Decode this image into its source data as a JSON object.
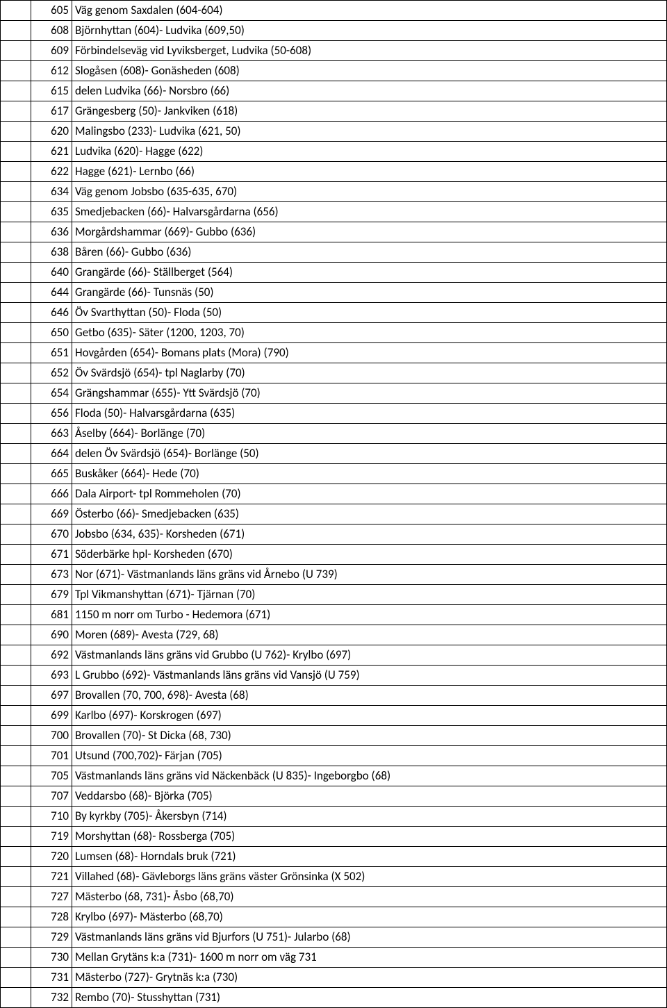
{
  "table": {
    "rows": [
      {
        "num": "605",
        "desc": "Väg genom Saxdalen (604-604)"
      },
      {
        "num": "608",
        "desc": "Björnhyttan (604)- Ludvika (609,50)"
      },
      {
        "num": "609",
        "desc": "Förbindelseväg vid Lyviksberget, Ludvika (50-608)"
      },
      {
        "num": "612",
        "desc": "Slogåsen (608)- Gonäsheden (608)"
      },
      {
        "num": "615",
        "desc": "delen Ludvika (66)- Norsbro (66)"
      },
      {
        "num": "617",
        "desc": "Grängesberg (50)- Jankviken (618)"
      },
      {
        "num": "620",
        "desc": "Malingsbo (233)- Ludvika (621, 50)"
      },
      {
        "num": "621",
        "desc": "Ludvika (620)- Hagge (622)"
      },
      {
        "num": "622",
        "desc": "Hagge (621)- Lernbo (66)"
      },
      {
        "num": "634",
        "desc": "Väg genom Jobsbo (635-635, 670)"
      },
      {
        "num": "635",
        "desc": "Smedjebacken (66)- Halvarsgårdarna (656)"
      },
      {
        "num": "636",
        "desc": "Morgårdshammar (669)- Gubbo (636)"
      },
      {
        "num": "638",
        "desc": "Båren (66)- Gubbo (636)"
      },
      {
        "num": "640",
        "desc": "Grangärde (66)- Ställberget (564)"
      },
      {
        "num": "644",
        "desc": "Grangärde (66)- Tunsnäs (50)"
      },
      {
        "num": "646",
        "desc": "Öv Svarthyttan (50)-  Floda (50)"
      },
      {
        "num": "650",
        "desc": "Getbo (635)- Säter (1200, 1203, 70)"
      },
      {
        "num": "651",
        "desc": "Hovgården (654)- Bomans plats (Mora) (790)"
      },
      {
        "num": "652",
        "desc": "Öv Svärdsjö (654)- tpl Naglarby (70)"
      },
      {
        "num": "654",
        "desc": "Grängshammar (655)- Ytt Svärdsjö (70)"
      },
      {
        "num": "656",
        "desc": "Floda (50)- Halvarsgårdarna (635)"
      },
      {
        "num": "663",
        "desc": "Åselby (664)- Borlänge (70)"
      },
      {
        "num": "664",
        "desc": "delen Öv Svärdsjö (654)- Borlänge (50)"
      },
      {
        "num": "665",
        "desc": "Buskåker (664)- Hede (70)"
      },
      {
        "num": "666",
        "desc": "Dala Airport- tpl Rommeholen (70)"
      },
      {
        "num": "669",
        "desc": "Österbo (66)- Smedjebacken (635)"
      },
      {
        "num": "670",
        "desc": "Jobsbo (634, 635)- Korsheden (671)"
      },
      {
        "num": "671",
        "desc": "Söderbärke hpl- Korsheden (670)"
      },
      {
        "num": "673",
        "desc": "Nor (671)- Västmanlands läns gräns vid Årnebo (U 739)"
      },
      {
        "num": "679",
        "desc": "Tpl Vikmanshyttan (671)- Tjärnan (70)"
      },
      {
        "num": "681",
        "desc": "1150 m norr om Turbo - Hedemora (671)"
      },
      {
        "num": "690",
        "desc": "Moren (689)- Avesta (729, 68)"
      },
      {
        "num": "692",
        "desc": "Västmanlands läns gräns vid Grubbo (U 762)- Krylbo (697)"
      },
      {
        "num": "693",
        "desc": "L Grubbo (692)- Västmanlands läns gräns vid Vansjö (U 759)"
      },
      {
        "num": "697",
        "desc": "Brovallen (70, 700, 698)- Avesta (68)"
      },
      {
        "num": "699",
        "desc": "Karlbo (697)- Korskrogen (697)"
      },
      {
        "num": "700",
        "desc": "Brovallen (70)- St Dicka (68, 730)"
      },
      {
        "num": "701",
        "desc": "Utsund (700,702)- Färjan (705)"
      },
      {
        "num": "705",
        "desc": "Västmanlands läns gräns vid Näckenbäck (U 835)- Ingeborgbo (68)"
      },
      {
        "num": "707",
        "desc": "Veddarsbo (68)- Björka (705)"
      },
      {
        "num": "710",
        "desc": "By kyrkby (705)- Åkersbyn (714)"
      },
      {
        "num": "719",
        "desc": "Morshyttan (68)- Rossberga (705)"
      },
      {
        "num": "720",
        "desc": "Lumsen (68)- Horndals bruk (721)"
      },
      {
        "num": "721",
        "desc": "Villahed (68)- Gävleborgs läns gräns väster Grönsinka (X 502)"
      },
      {
        "num": "727",
        "desc": "Mästerbo (68, 731)- Åsbo (68,70)"
      },
      {
        "num": "728",
        "desc": "Krylbo (697)- Mästerbo (68,70)"
      },
      {
        "num": "729",
        "desc": "Västmanlands läns gräns vid Bjurfors (U 751)- Jularbo (68)"
      },
      {
        "num": "730",
        "desc": "Mellan Grytäns k:a (731)- 1600 m norr om väg 731"
      },
      {
        "num": "731",
        "desc": "Mästerbo (727)- Grytnäs k:a (730)"
      },
      {
        "num": "732",
        "desc": "Rembo (70)- Stusshyttan (731)"
      }
    ],
    "colors": {
      "border": "#000000",
      "background": "#ffffff",
      "text": "#000000"
    },
    "font_size": 17
  }
}
